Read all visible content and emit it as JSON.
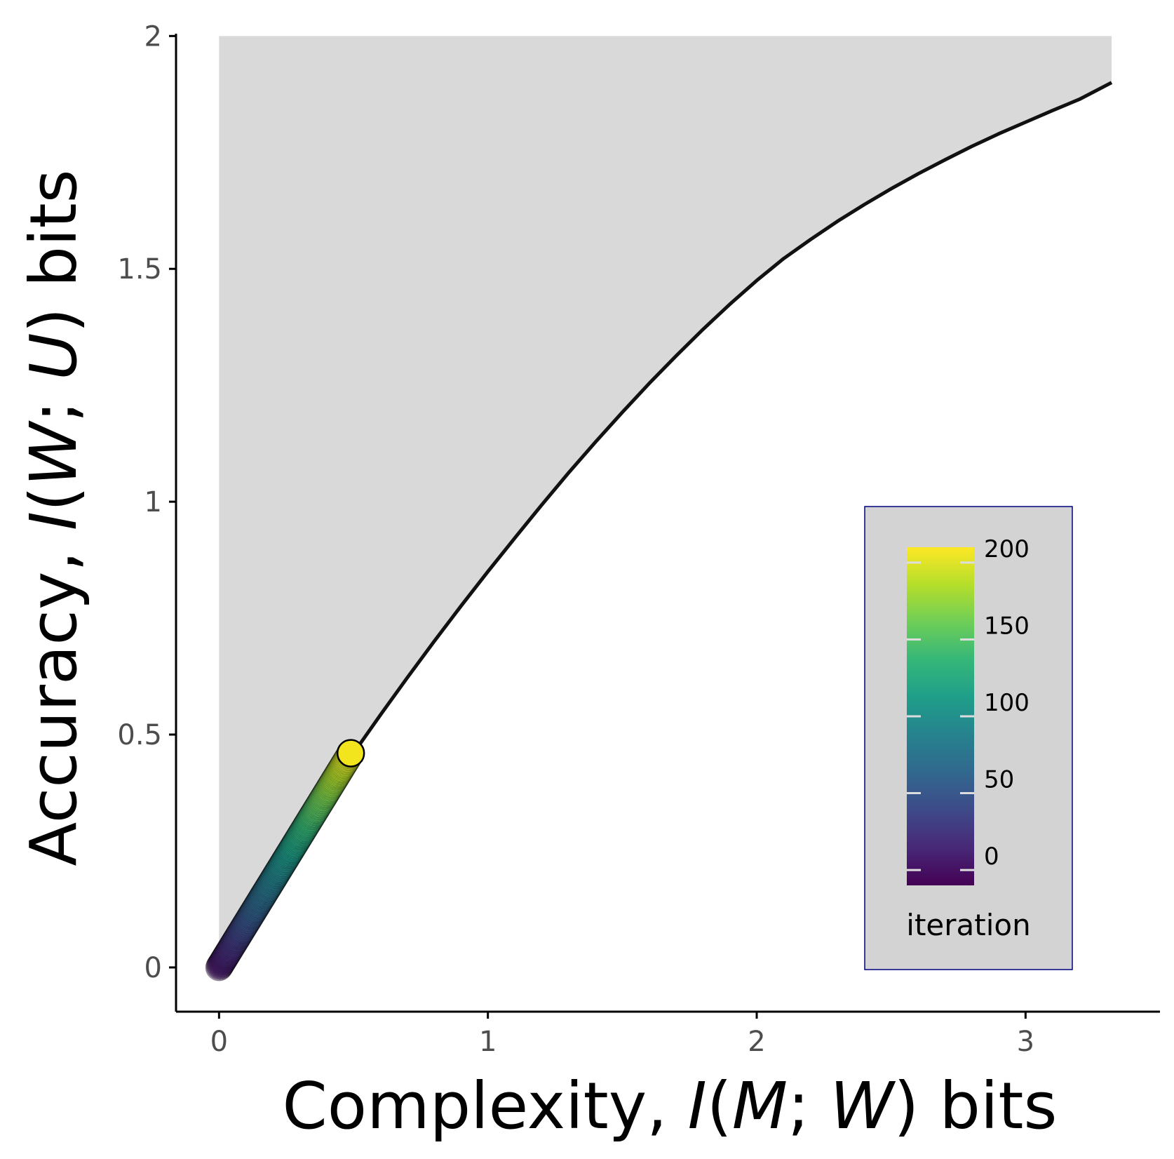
{
  "chart_data": {
    "type": "scatter",
    "xlabel": {
      "prefix": "Complexity, ",
      "italic": "I",
      "open": "(",
      "var1": "M",
      "sep": "; ",
      "var2": "W",
      "close": ")",
      "suffix": " bits"
    },
    "ylabel": {
      "prefix": "Accuracy, ",
      "italic": "I",
      "open": "(",
      "var1": "W",
      "sep": "; ",
      "var2": "U",
      "close": ")",
      "suffix": " bits"
    },
    "xlim": [
      -0.16,
      3.5
    ],
    "ylim": [
      -0.095,
      2.005
    ],
    "x_ticks": [
      0,
      1,
      2,
      3
    ],
    "x_tick_labels": [
      "0",
      "1",
      "2",
      "3"
    ],
    "y_ticks": [
      0,
      0.5,
      1,
      1.5,
      2
    ],
    "y_tick_labels": [
      "0",
      "0.5",
      "1",
      "1.5",
      "2"
    ],
    "grid": false,
    "shaded_region": {
      "description_color": "#d9d9d9",
      "x_start": 0,
      "x_end": 3.32,
      "y_top": 2.0
    },
    "bound_curve": {
      "color": "#111111",
      "points": [
        [
          0.0,
          0.0
        ],
        [
          0.1,
          0.092
        ],
        [
          0.2,
          0.184
        ],
        [
          0.3,
          0.276
        ],
        [
          0.4,
          0.368
        ],
        [
          0.5,
          0.46
        ],
        [
          0.6,
          0.542
        ],
        [
          0.7,
          0.622
        ],
        [
          0.8,
          0.7
        ],
        [
          0.9,
          0.776
        ],
        [
          1.0,
          0.85
        ],
        [
          1.1,
          0.922
        ],
        [
          1.2,
          0.993
        ],
        [
          1.3,
          1.062
        ],
        [
          1.4,
          1.128
        ],
        [
          1.5,
          1.192
        ],
        [
          1.6,
          1.254
        ],
        [
          1.7,
          1.313
        ],
        [
          1.8,
          1.37
        ],
        [
          1.9,
          1.424
        ],
        [
          2.0,
          1.475
        ],
        [
          2.1,
          1.522
        ],
        [
          2.2,
          1.563
        ],
        [
          2.3,
          1.602
        ],
        [
          2.4,
          1.638
        ],
        [
          2.5,
          1.672
        ],
        [
          2.6,
          1.704
        ],
        [
          2.7,
          1.734
        ],
        [
          2.8,
          1.763
        ],
        [
          2.9,
          1.79
        ],
        [
          3.0,
          1.815
        ],
        [
          3.1,
          1.84
        ],
        [
          3.2,
          1.864
        ],
        [
          3.32,
          1.9
        ]
      ]
    },
    "iterations": {
      "count": 201,
      "start": [
        0.0,
        0.0
      ],
      "end": [
        0.49,
        0.46
      ],
      "final_marker_color": "#f2e51d"
    },
    "colorbar": {
      "title": "iteration",
      "min": -10,
      "max": 210,
      "ticks": [
        0,
        50,
        100,
        150,
        200
      ],
      "tick_labels": [
        "0",
        "50",
        "100",
        "150",
        "200"
      ],
      "colors": [
        "#440154",
        "#482878",
        "#3e4a89",
        "#31688e",
        "#26828e",
        "#1f9e89",
        "#35b779",
        "#6ece58",
        "#b5de2b",
        "#fde725"
      ],
      "legend_background": "#d3d3d3",
      "legend_border": "#000080"
    }
  }
}
